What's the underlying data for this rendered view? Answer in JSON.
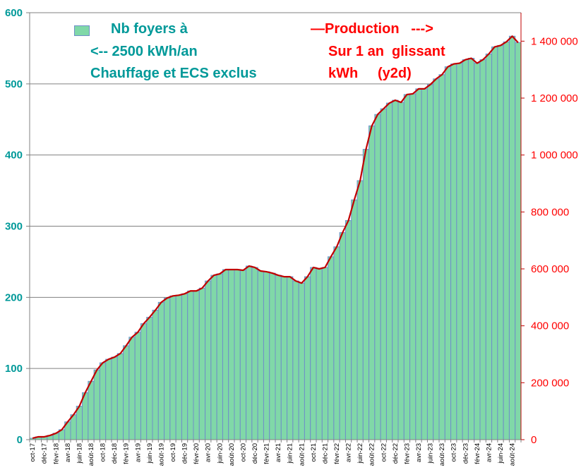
{
  "chart_data": {
    "type": "bar+line",
    "left_axis": {
      "label": "Nb foyers",
      "ylim": [
        0,
        600
      ],
      "ticks": [
        "0",
        "100",
        "200",
        "300",
        "400",
        "500",
        "600"
      ],
      "color": "#009999"
    },
    "right_axis": {
      "label": "Production kWh",
      "ylim": [
        0,
        1500000
      ],
      "ticks": [
        "0",
        "200 000",
        "400 000",
        "600 000",
        "800 000",
        "1 000 000",
        "1 200 000",
        "1 400 000"
      ],
      "color": "#ff0000"
    },
    "legend": {
      "bars": [
        "Nb foyers à",
        "<-- 2500 kWh/an",
        "Chauffage et ECS exclus"
      ],
      "line": [
        "—Production   --->",
        "Sur 1 an  glissant",
        "kWh     (y2d)"
      ],
      "placement": "top"
    },
    "x_tick_labels": [
      "oct-17",
      "déc-17",
      "févr-18",
      "avr-18",
      "juin-18",
      "août-18",
      "oct-18",
      "déc-18",
      "févr-19",
      "avr-19",
      "juin-19",
      "août-19",
      "oct-19",
      "déc-19",
      "févr-20",
      "avr-20",
      "juin-20",
      "août-20",
      "oct-20",
      "déc-20",
      "févr-21",
      "avr-21",
      "juin-21",
      "août-21",
      "oct-21",
      "déc-21",
      "févr-22",
      "avr-22",
      "juin-22",
      "août-22",
      "oct-22",
      "déc-22",
      "févr-23",
      "avr-23",
      "juin-23",
      "août-23",
      "oct-23",
      "déc-23",
      "févr-24",
      "avr-24",
      "juin-24",
      "août-24"
    ],
    "series": [
      {
        "name": "Nb foyers",
        "type": "bar",
        "axis": "left",
        "color": "#80d8a8",
        "edge": "#6f8fc8",
        "values": [
          2,
          4,
          4,
          6,
          9,
          14,
          25,
          35,
          47,
          66,
          82,
          98,
          108,
          113,
          116,
          121,
          132,
          144,
          151,
          163,
          172,
          182,
          193,
          199,
          202,
          203,
          205,
          209,
          209,
          213,
          223,
          231,
          233,
          239,
          239,
          239,
          238,
          244,
          242,
          237,
          236,
          234,
          231,
          229,
          229,
          223,
          220,
          229,
          242,
          240,
          242,
          257,
          271,
          291,
          308,
          337,
          364,
          408,
          441,
          457,
          465,
          473,
          477,
          474,
          485,
          486,
          493,
          493,
          499,
          507,
          513,
          524,
          528,
          529,
          534,
          536,
          529,
          534,
          542,
          552,
          554,
          559,
          567,
          558
        ]
      },
      {
        "name": "Production",
        "type": "line",
        "axis": "right",
        "color": "#c00000",
        "values": [
          5000,
          10000,
          10000,
          15000,
          22500,
          35000,
          62500,
          87500,
          117500,
          165000,
          205000,
          245000,
          270000,
          282500,
          290000,
          302500,
          330000,
          360000,
          377500,
          407500,
          430000,
          455000,
          482500,
          497500,
          505000,
          507500,
          512500,
          522500,
          522500,
          532500,
          557500,
          577500,
          582500,
          597500,
          597500,
          597500,
          595000,
          610000,
          605000,
          592500,
          590000,
          585000,
          577500,
          572500,
          572500,
          557500,
          550000,
          572500,
          605000,
          600000,
          605000,
          642500,
          677500,
          727500,
          770000,
          842500,
          910000,
          1020000,
          1102500,
          1142500,
          1162500,
          1182500,
          1192500,
          1185000,
          1212500,
          1215000,
          1232500,
          1232500,
          1247500,
          1267500,
          1282500,
          1310000,
          1320000,
          1322500,
          1335000,
          1340000,
          1322500,
          1335000,
          1355000,
          1380000,
          1385000,
          1397500,
          1417500,
          1395000
        ]
      }
    ]
  }
}
